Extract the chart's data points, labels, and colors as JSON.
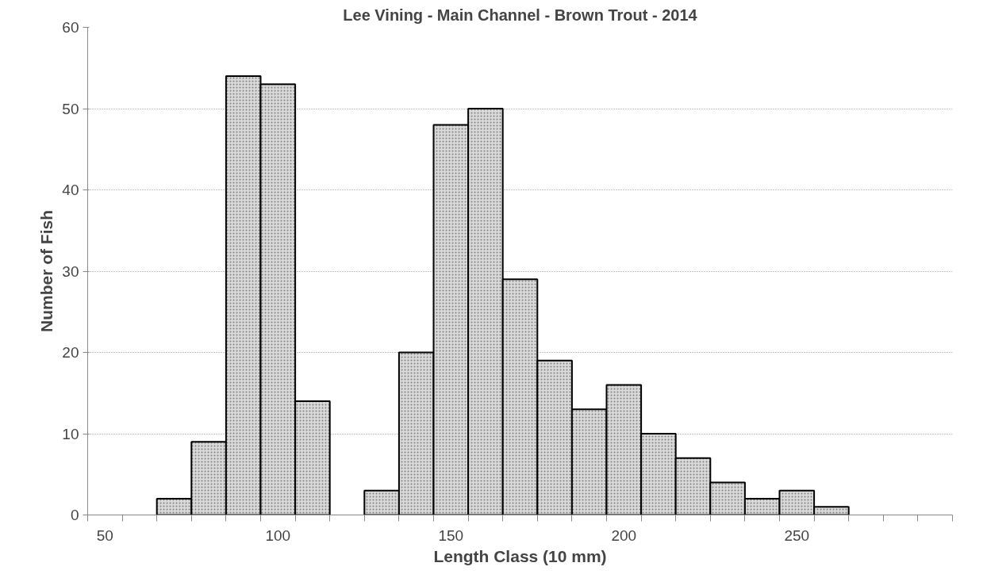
{
  "chart_data": {
    "type": "bar",
    "title": "Lee Vining - Main Channel - Brown Trout - 2014",
    "xlabel": "Length Class (10 mm)",
    "ylabel": "Number of Fish",
    "categories": [
      "50",
      null,
      null,
      null,
      null,
      "100",
      null,
      null,
      null,
      null,
      "150",
      null,
      null,
      null,
      null,
      "200",
      null,
      null,
      null,
      null,
      "250",
      null,
      null,
      null,
      null
    ],
    "values": [
      0,
      0,
      2,
      9,
      54,
      53,
      14,
      0,
      3,
      20,
      48,
      50,
      29,
      19,
      13,
      16,
      10,
      7,
      4,
      2,
      3,
      1,
      0,
      0,
      0
    ],
    "color": "#d9d9d9",
    "ylim": [
      0,
      60
    ],
    "yticks": [
      0,
      10,
      20,
      30,
      40,
      50,
      60
    ],
    "grid": "y"
  }
}
